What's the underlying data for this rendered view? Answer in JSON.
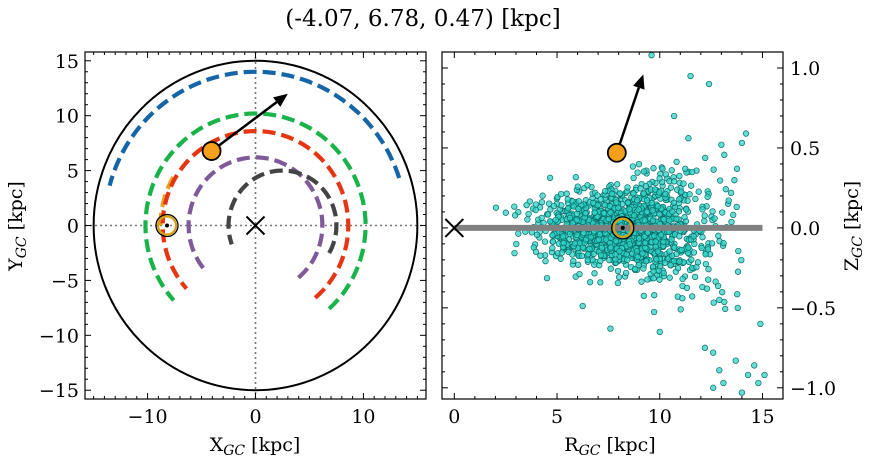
{
  "figure": {
    "title": "(-4.07, 6.78, 0.47) [kpc]"
  },
  "chart_data": [
    {
      "type": "scatter",
      "panel": "left",
      "xlabel": "XGC [kpc]",
      "ylabel": "YGC [kpc]",
      "xlim": [
        -15.8,
        15.8
      ],
      "ylim": [
        -15.8,
        15.8
      ],
      "xticks": [
        -10,
        0,
        10
      ],
      "yticks": [
        15,
        10,
        5,
        0,
        -5,
        -10,
        -15
      ],
      "xtick_labels": [
        "−10",
        "0",
        "10"
      ],
      "ytick_labels": [
        "15",
        "10",
        "5",
        "0",
        "−5",
        "−10",
        "−15"
      ],
      "grid": false,
      "reference_lines": [
        {
          "orientation": "vertical",
          "x": 0,
          "style": "dotted",
          "color": "#777777"
        },
        {
          "orientation": "horizontal",
          "y": 0,
          "style": "dotted",
          "color": "#777777"
        }
      ],
      "boundary_circle": {
        "center": [
          0,
          0
        ],
        "radius": 15,
        "color": "#000000"
      },
      "galactic_center": {
        "x": 0,
        "y": 0,
        "marker": "x"
      },
      "sun": {
        "x": -8.2,
        "y": 0,
        "marker": "circled dot",
        "color": "#d4a017"
      },
      "target": {
        "x": -4.07,
        "y": 6.78,
        "color": "#f5a01a"
      },
      "velocity_arrow": {
        "from": [
          -4.07,
          6.78
        ],
        "to": [
          3.0,
          12.0
        ]
      },
      "series": [
        {
          "color": "#e8a020",
          "radius": 8.8,
          "theta_deg": [
            150,
            180
          ],
          "style": "dashed"
        },
        {
          "color": "#1565a8",
          "radius": 14.0,
          "theta_deg": [
            18,
            165
          ],
          "style": "dashed"
        },
        {
          "color": "#19b34a",
          "radius": 10.2,
          "theta_deg": [
            -48,
            222
          ],
          "style": "dashed"
        },
        {
          "color": "#e63512",
          "radius": 8.6,
          "theta_deg": [
            -50,
            222
          ],
          "style": "dashed"
        },
        {
          "color": "#7f5a9a",
          "radius": 6.2,
          "theta_deg": [
            -50,
            220
          ],
          "style": "dashed"
        },
        {
          "color": "#444444",
          "radius": 5.0,
          "theta_deg": [
            -30,
            200
          ],
          "style": "dashed",
          "x_shift": 2.5,
          "y_shift": 0.0
        }
      ]
    },
    {
      "type": "scatter",
      "panel": "right",
      "xlabel": "RGC [kpc]",
      "ylabel": "ZGC [kpc]",
      "xlim": [
        -0.6,
        16.0
      ],
      "ylim": [
        -1.07,
        1.1
      ],
      "xticks": [
        0,
        5,
        10,
        15
      ],
      "yticks": [
        1.0,
        0.5,
        0.0,
        -0.5,
        -1.0
      ],
      "xtick_labels": [
        "0",
        "5",
        "10",
        "15"
      ],
      "ytick_labels": [
        "1.0",
        "0.5",
        "0.0",
        "−0.5",
        "−1.0"
      ],
      "y_axis_side": "right",
      "grid": false,
      "plane_line": {
        "x": [
          0,
          15
        ],
        "y": 0,
        "color": "#808080"
      },
      "galactic_center": {
        "x": 0,
        "y": 0,
        "marker": "x"
      },
      "sun": {
        "x": 8.2,
        "y": 0,
        "marker": "circled dot",
        "color": "#d4a017"
      },
      "target": {
        "x": 7.91,
        "y": 0.47,
        "color": "#f5a01a"
      },
      "velocity_arrow": {
        "from": [
          7.91,
          0.47
        ],
        "to": [
          9.2,
          0.96
        ]
      },
      "stars": {
        "color": "#2ed3c8",
        "edge_color": "#0a6b66",
        "count": 1500,
        "center": [
          8.3,
          0.0
        ],
        "spread_r": 2.0,
        "spread_z": 0.11,
        "outliers": [
          [
            9.6,
            1.08
          ],
          [
            11.5,
            0.95
          ],
          [
            12.4,
            0.9
          ],
          [
            10.7,
            0.7
          ],
          [
            14.2,
            0.59
          ],
          [
            13.0,
            0.52
          ],
          [
            12.9,
            -0.45
          ],
          [
            13.8,
            -0.5
          ],
          [
            14.9,
            -0.6
          ],
          [
            12.2,
            -0.75
          ],
          [
            10.0,
            -0.65
          ],
          [
            7.6,
            -0.63
          ],
          [
            12.6,
            -0.78
          ],
          [
            13.7,
            -0.83
          ],
          [
            14.6,
            -0.86
          ],
          [
            12.9,
            -0.89
          ],
          [
            14.3,
            -0.92
          ],
          [
            15.1,
            -0.92
          ],
          [
            12.6,
            -1.0
          ],
          [
            14.0,
            -1.03
          ],
          [
            13.1,
            -0.97
          ],
          [
            14.8,
            -0.97
          ],
          [
            12.3,
            -0.38
          ],
          [
            11.1,
            -0.44
          ]
        ]
      }
    }
  ]
}
